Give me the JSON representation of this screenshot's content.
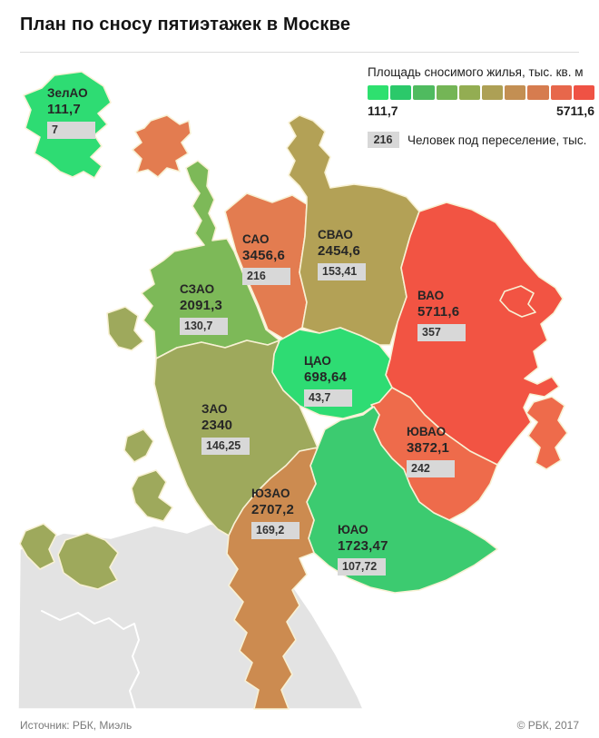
{
  "title": "План по сносу пятиэтажек в Москве",
  "legend": {
    "gradient_title": "Площадь сносимого жилья, тыс. кв. м",
    "min_label": "111,7",
    "max_label": "5711,6",
    "gradient_colors": [
      "#2ee06f",
      "#2bc96a",
      "#4fbb5f",
      "#74b556",
      "#93ad52",
      "#ada055",
      "#c38f53",
      "#d67c4f",
      "#e7674b",
      "#ef5244"
    ],
    "badge_example": "216",
    "badge_label": "Человек под переселение, тыс.",
    "badge_bg": "#d8d8d8"
  },
  "map": {
    "border_color": "#f8f1d4",
    "outside_region_color": "#e3e3e3",
    "districts": [
      {
        "id": "zelao",
        "name": "ЗелАО",
        "area": "111,7",
        "people": "7",
        "color": "#2edc73"
      },
      {
        "id": "szao",
        "name": "СЗАО",
        "area": "2091,3",
        "people": "130,7",
        "color": "#7db958"
      },
      {
        "id": "sao",
        "name": "САО",
        "area": "3456,6",
        "people": "216",
        "color": "#e37c50"
      },
      {
        "id": "svao",
        "name": "СВАО",
        "area": "2454,6",
        "people": "153,41",
        "color": "#b3a156"
      },
      {
        "id": "vao",
        "name": "ВАО",
        "area": "5711,6",
        "people": "357",
        "color": "#f25443"
      },
      {
        "id": "cao",
        "name": "ЦАО",
        "area": "698,64",
        "people": "43,7",
        "color": "#2edc73"
      },
      {
        "id": "zao",
        "name": "ЗАО",
        "area": "2340",
        "people": "146,25",
        "color": "#9ea95c"
      },
      {
        "id": "uvao",
        "name": "ЮВАО",
        "area": "3872,1",
        "people": "242",
        "color": "#ee6b4b"
      },
      {
        "id": "uzao",
        "name": "ЮЗАО",
        "area": "2707,2",
        "people": "169,2",
        "color": "#cc8b50"
      },
      {
        "id": "uao",
        "name": "ЮАО",
        "area": "1723,47",
        "people": "107,72",
        "color": "#3ccb70"
      }
    ]
  },
  "footer": {
    "source": "Источник: РБК, Миэль",
    "copyright": "© РБК, 2017"
  },
  "chart_data": {
    "type": "choropleth",
    "title": "План по сносу пятиэтажек в Москве",
    "legend_title": "Площадь сносимого жилья, тыс. кв. м",
    "scale": {
      "min": 111.7,
      "max": 5711.6,
      "min_label": "111,7",
      "max_label": "5711,6"
    },
    "categories": [
      "ЗелАО",
      "СЗАО",
      "САО",
      "СВАО",
      "ВАО",
      "ЦАО",
      "ЗАО",
      "ЮВАО",
      "ЮЗАО",
      "ЮАО"
    ],
    "series": [
      {
        "name": "Площадь сносимого жилья, тыс. кв. м",
        "values": [
          111.7,
          2091.3,
          3456.6,
          2454.6,
          5711.6,
          698.64,
          2340,
          3872.1,
          2707.2,
          1723.47
        ]
      },
      {
        "name": "Человек под переселение, тыс.",
        "values": [
          7,
          130.7,
          216,
          153.41,
          357,
          43.7,
          146.25,
          242,
          169.2,
          107.72
        ]
      }
    ],
    "legend_position": "top-right"
  }
}
